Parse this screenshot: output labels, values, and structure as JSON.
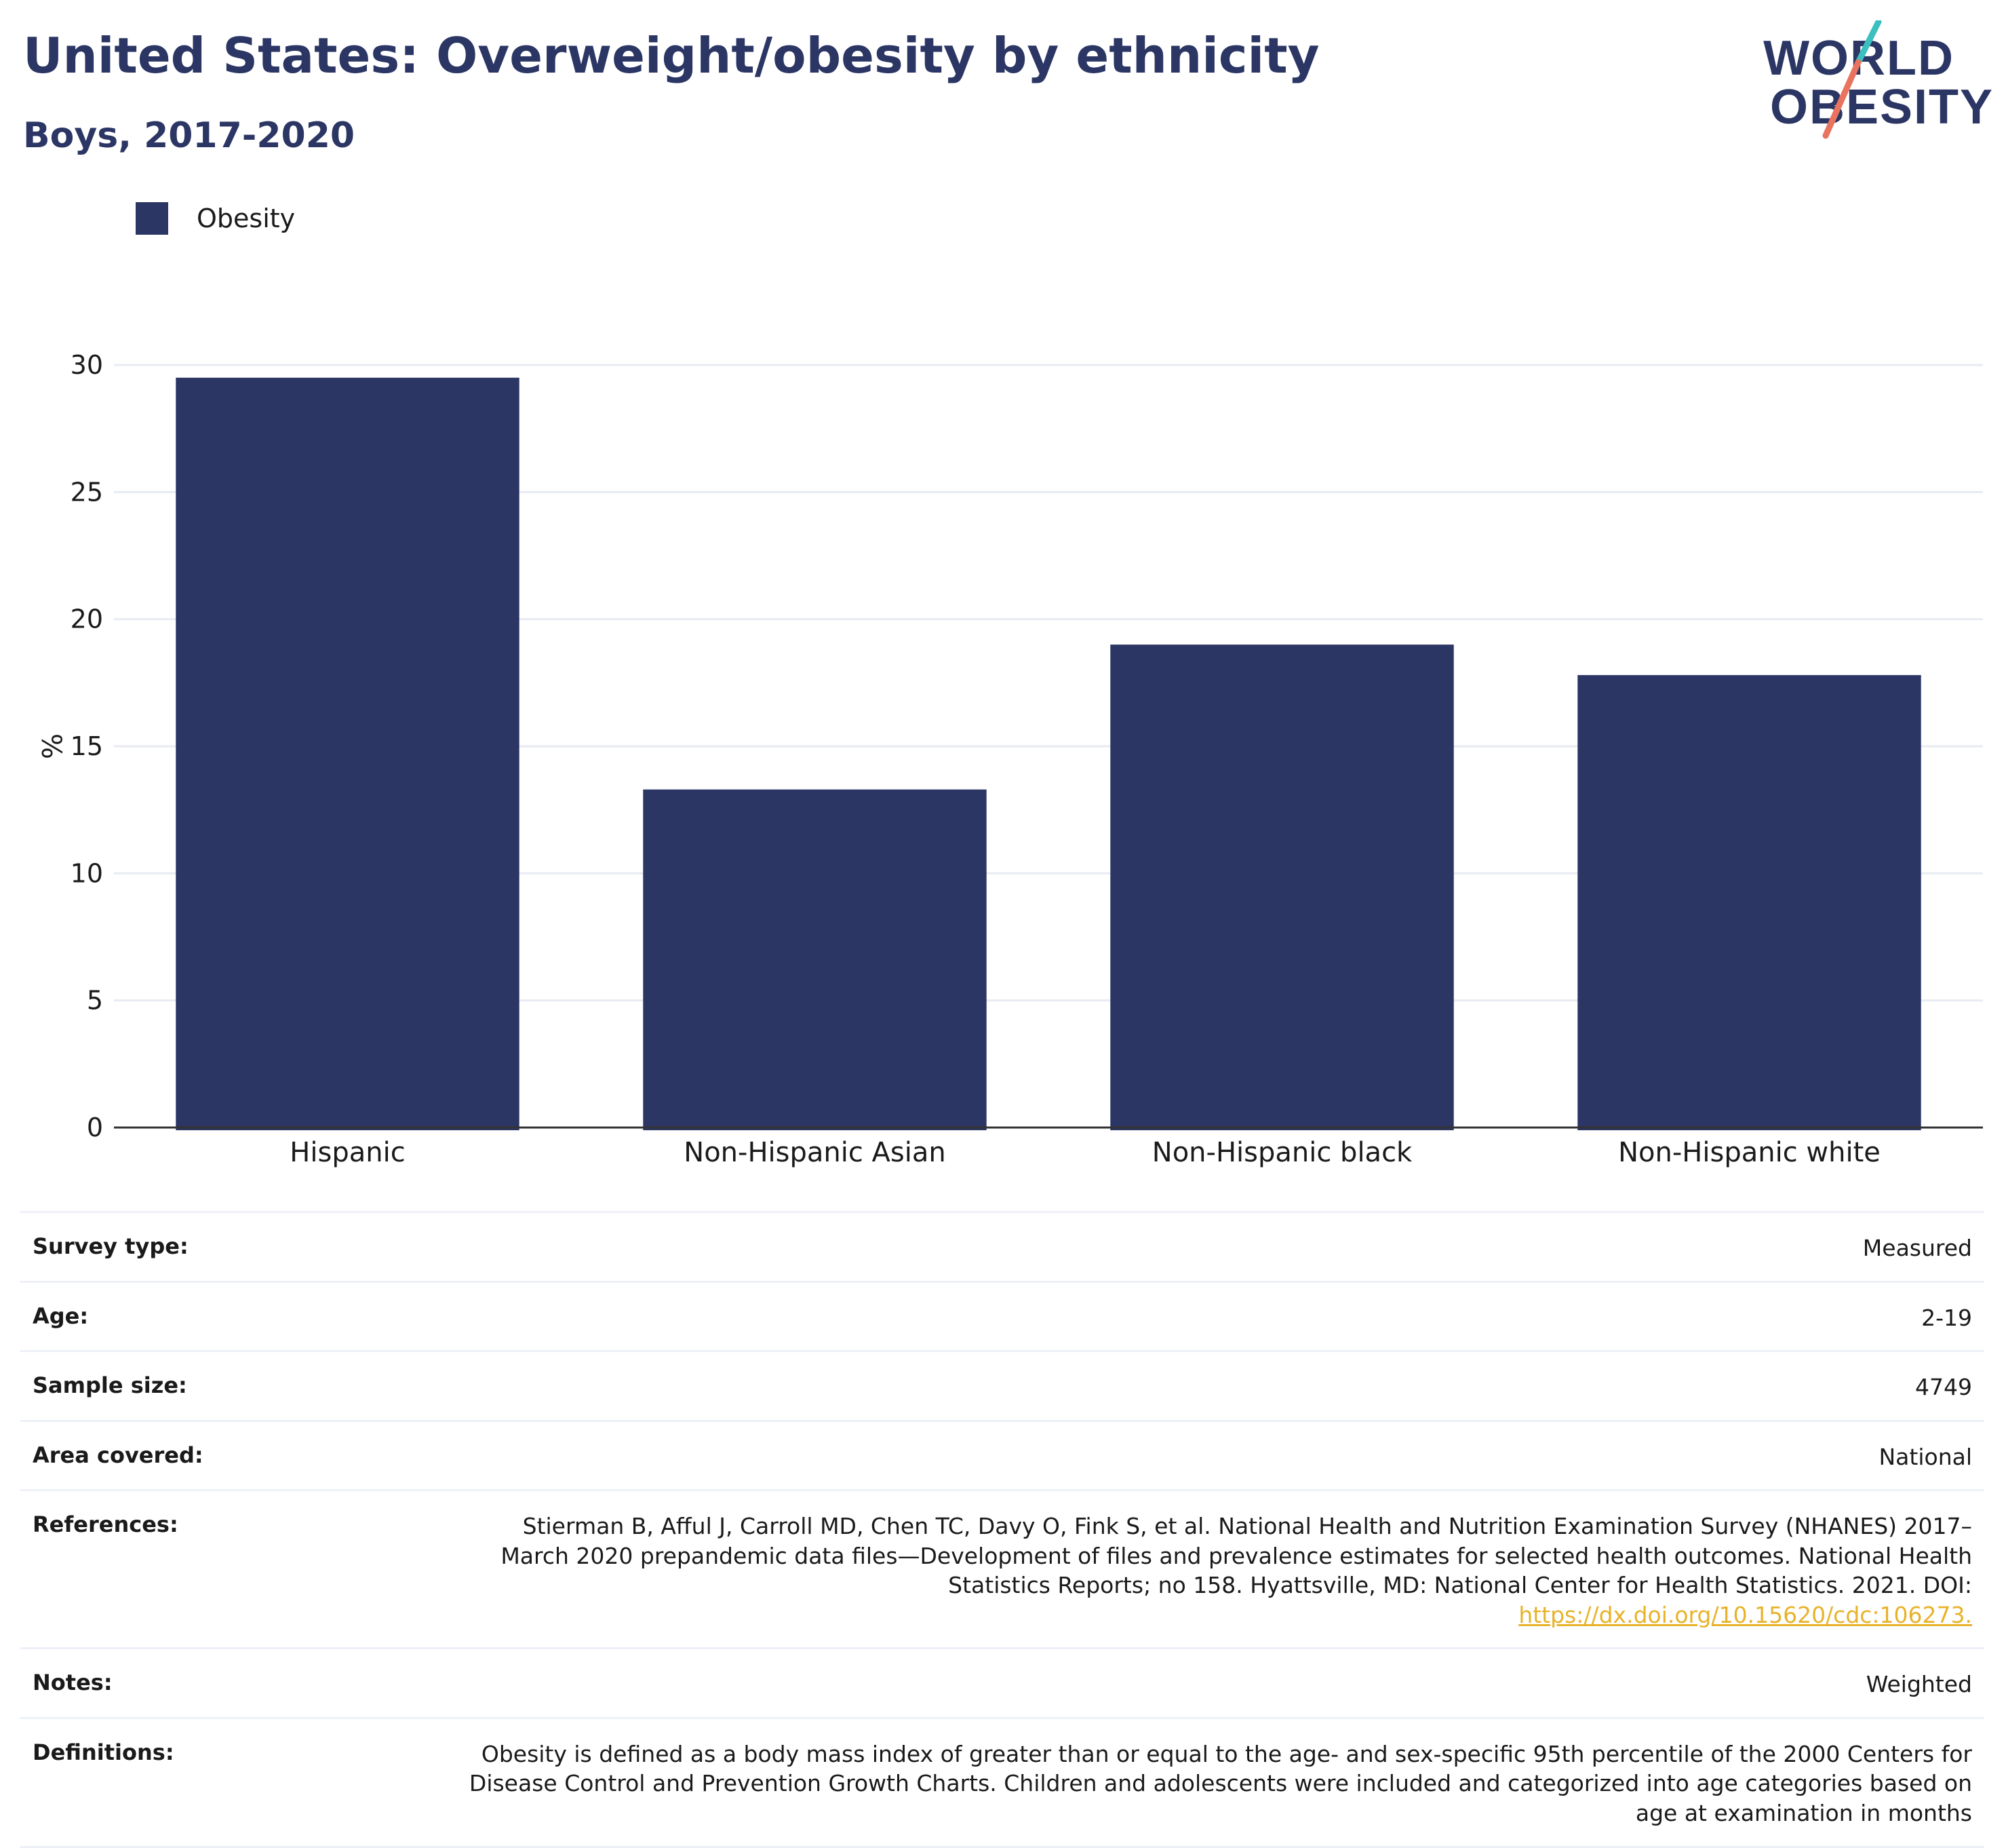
{
  "header": {
    "title": "United States: Overweight/obesity by ethnicity",
    "subtitle": "Boys, 2017-2020",
    "logo_line1": "WORLD",
    "logo_line2": "OBESITY"
  },
  "legend": {
    "label": "Obesity",
    "color": "#2b3664"
  },
  "chart_data": {
    "type": "bar",
    "categories": [
      "Hispanic",
      "Non-Hispanic Asian",
      "Non-Hispanic black",
      "Non-Hispanic white"
    ],
    "series": [
      {
        "name": "Obesity",
        "values": [
          29.5,
          13.3,
          19.0,
          17.8
        ],
        "color": "#2b3664"
      }
    ],
    "title": "United States: Overweight/obesity by ethnicity",
    "subtitle": "Boys, 2017-2020",
    "xlabel": "",
    "ylabel": "%",
    "ylim": [
      0,
      30
    ],
    "yticks": [
      0,
      5,
      10,
      15,
      20,
      25,
      30
    ],
    "grid": true,
    "legend_position": "top-left"
  },
  "info": [
    {
      "key": "Survey type:",
      "value": "Measured"
    },
    {
      "key": "Age:",
      "value": "2-19"
    },
    {
      "key": "Sample size:",
      "value": "4749"
    },
    {
      "key": "Area covered:",
      "value": "National"
    },
    {
      "key": "References:",
      "value": "Stierman B, Afful J, Carroll MD, Chen TC, Davy O, Fink S, et al. National Health and Nutrition Examination Survey (NHANES) 2017–March 2020 prepandemic data files—Development of files and prevalence estimates for selected health outcomes. National Health Statistics Reports; no 158. Hyattsville, MD: National Center for Health Statistics. 2021. DOI:",
      "link": "https://dx.doi.org/10.15620/cdc:106273."
    },
    {
      "key": "Notes:",
      "value": "Weighted"
    },
    {
      "key": "Definitions:",
      "value": "Obesity is defined as a body mass index of greater than or equal to the age- and sex-specific 95th percentile of the 2000 Centers for Disease Control and Prevention Growth Charts. Children and adolescents were included and categorized into age categories based on age at examination in months"
    }
  ]
}
